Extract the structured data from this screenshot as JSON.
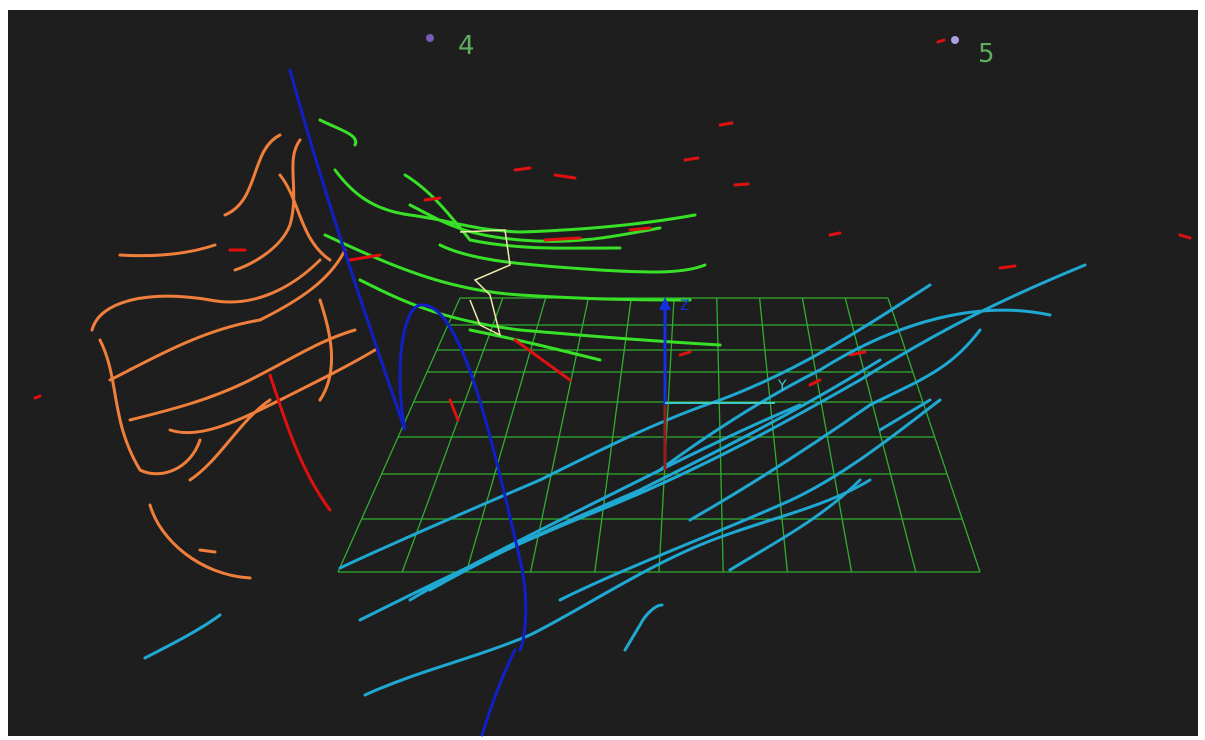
{
  "markers": [
    {
      "label": "4"
    },
    {
      "label": "5"
    }
  ],
  "axes": {
    "z": "Z",
    "y": "Y"
  }
}
